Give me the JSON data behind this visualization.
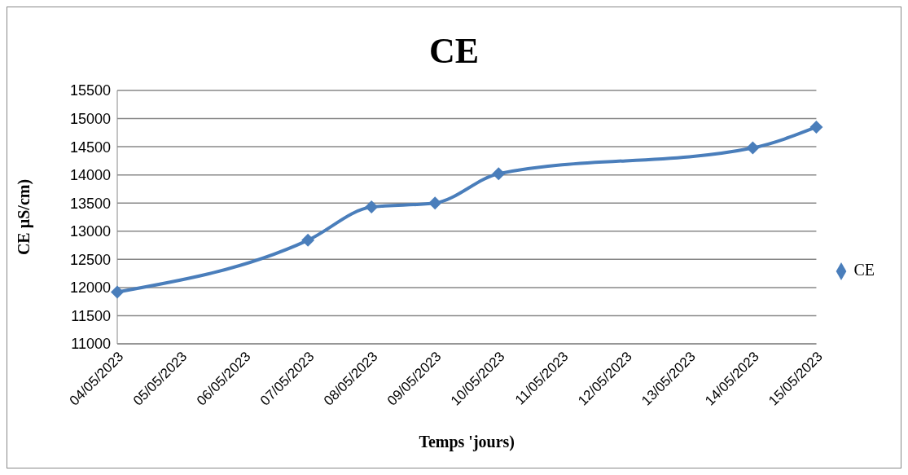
{
  "chart_data": {
    "type": "line",
    "title": "CE",
    "xlabel": "Temps 'jours)",
    "ylabel": "CE µS/cm)",
    "categories": [
      "04/05/2023",
      "05/05/2023",
      "06/05/2023",
      "07/05/2023",
      "08/05/2023",
      "09/05/2023",
      "10/05/2023",
      "11/05/2023",
      "12/05/2023",
      "13/05/2023",
      "14/05/2023",
      "15/05/2023"
    ],
    "series": [
      {
        "name": "CE",
        "color": "#4a7ebb",
        "values": [
          11920,
          null,
          null,
          12840,
          13430,
          13500,
          14020,
          null,
          null,
          null,
          14480,
          14850
        ]
      }
    ],
    "ylim": [
      11000,
      15500
    ],
    "yticks": [
      11000,
      11500,
      12000,
      12500,
      13000,
      13500,
      14000,
      14500,
      15000,
      15500
    ],
    "grid": "y",
    "legend": "right",
    "marker": "diamond",
    "line_style": "solid"
  }
}
